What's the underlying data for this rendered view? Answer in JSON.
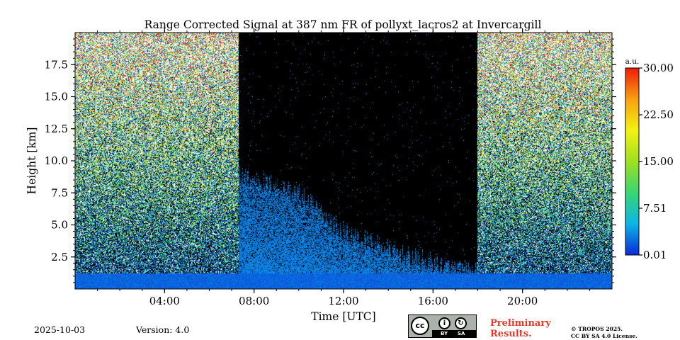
{
  "title": "Range Corrected Signal at 387 nm FR of pollyxt_lacros2 at Invercargill",
  "footer": {
    "date": "2025-10-03",
    "version": "Version: 4.0",
    "preliminary_line1": "Preliminary",
    "preliminary_line2": "Results.",
    "copyright_line1": "© TROPOS 2025.",
    "copyright_line2": "CC BY SA 4.0 License.",
    "license_badge": {
      "main": "cc",
      "by": "BY",
      "sa": "SA"
    }
  },
  "chart_data": {
    "type": "heatmap",
    "title": "Range Corrected Signal at 387 nm FR of pollyxt_lacros2 at Invercargill",
    "xlabel": "Time [UTC]",
    "ylabel": "Height [km]",
    "xlim_hours": [
      0,
      24
    ],
    "ylim_km": [
      0,
      20
    ],
    "xticks": [
      {
        "value": 4,
        "label": "04:00"
      },
      {
        "value": 8,
        "label": "08:00"
      },
      {
        "value": 12,
        "label": "12:00"
      },
      {
        "value": 16,
        "label": "16:00"
      },
      {
        "value": 20,
        "label": "20:00"
      }
    ],
    "yticks": [
      {
        "value": 2.5,
        "label": "2.5"
      },
      {
        "value": 5.0,
        "label": "5.0"
      },
      {
        "value": 7.5,
        "label": "7.5"
      },
      {
        "value": 10.0,
        "label": "10.0"
      },
      {
        "value": 12.5,
        "label": "12.5"
      },
      {
        "value": 15.0,
        "label": "15.0"
      },
      {
        "value": 17.5,
        "label": "17.5"
      }
    ],
    "colorbar": {
      "unit": "a.u.",
      "range": [
        0.01,
        30.0
      ],
      "ticks": [
        {
          "value": 0.01,
          "label": "0.01"
        },
        {
          "value": 7.51,
          "label": "7.51"
        },
        {
          "value": 15.0,
          "label": "15.00"
        },
        {
          "value": 22.5,
          "label": "22.50"
        },
        {
          "value": 30.0,
          "label": "30.00"
        }
      ],
      "colors": [
        "#0a2ad8",
        "#0ab6e6",
        "#38d672",
        "#9ee020",
        "#f4f212",
        "#f8a010",
        "#f01a0a"
      ]
    },
    "night_periods_hours": [
      [
        0,
        7.3
      ],
      [
        18.0,
        24
      ]
    ],
    "daytime_top_of_signal_km": [
      {
        "hour": 7.3,
        "top": 9.0
      },
      {
        "hour": 10.0,
        "top": 7.5
      },
      {
        "hour": 12.0,
        "top": 4.5
      },
      {
        "hour": 13.5,
        "top": 3.5
      },
      {
        "hour": 15.0,
        "top": 2.5
      },
      {
        "hour": 17.5,
        "top": 1.5
      },
      {
        "hour": 18.0,
        "top": 1.3
      }
    ],
    "background_color_no_signal": "#000000"
  }
}
